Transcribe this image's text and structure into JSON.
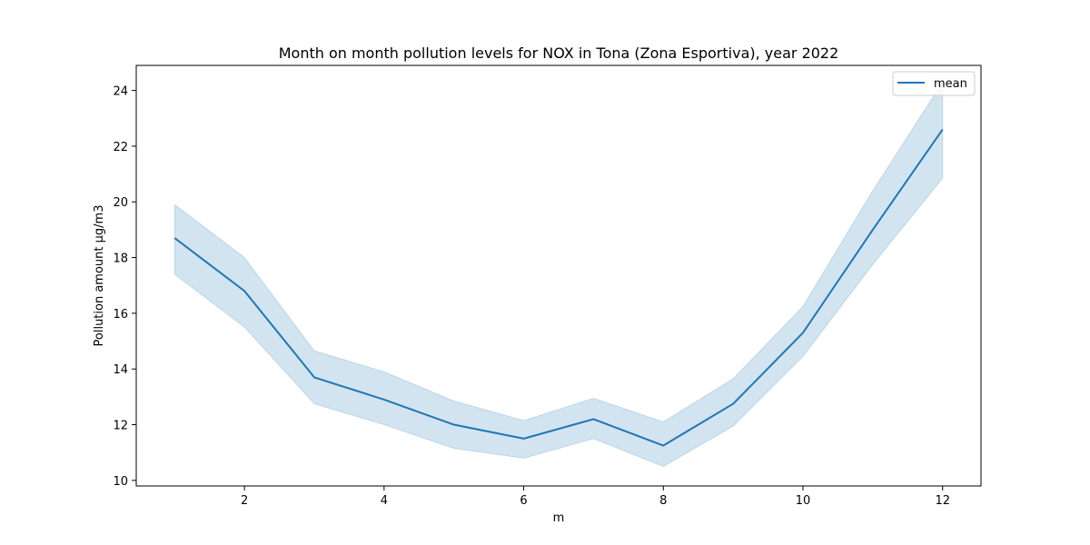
{
  "chart_data": {
    "type": "line",
    "title": "Month on month pollution levels for NOX in Tona (Zona Esportiva), year 2022",
    "xlabel": "m",
    "ylabel": "Pollution amount µg/m3",
    "xlim": [
      0.45,
      12.55
    ],
    "ylim": [
      9.8,
      24.9
    ],
    "xticks": [
      2,
      4,
      6,
      8,
      10,
      12
    ],
    "yticks": [
      10,
      12,
      14,
      16,
      18,
      20,
      22,
      24
    ],
    "grid": false,
    "legend_position": "top-right",
    "series": [
      {
        "name": "mean",
        "color": "#1f77b4",
        "x": [
          1,
          2,
          3,
          4,
          5,
          6,
          7,
          8,
          9,
          10,
          11,
          12
        ],
        "values": [
          18.7,
          16.8,
          13.7,
          12.9,
          12.0,
          11.5,
          12.2,
          11.25,
          12.75,
          15.3,
          19.0,
          22.6
        ],
        "lower": [
          17.4,
          15.5,
          12.75,
          12.0,
          11.15,
          10.8,
          11.5,
          10.5,
          11.95,
          14.45,
          17.75,
          20.85
        ],
        "upper": [
          19.9,
          18.0,
          14.65,
          13.9,
          12.85,
          12.15,
          12.95,
          12.1,
          13.65,
          16.25,
          20.4,
          24.3
        ]
      }
    ]
  }
}
